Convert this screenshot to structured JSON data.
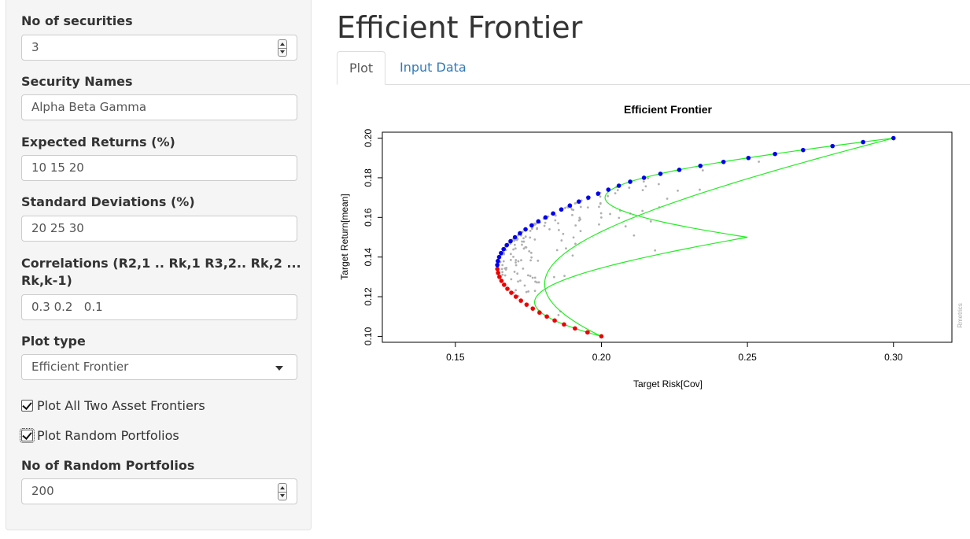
{
  "sidebar": {
    "num_securities": {
      "label": "No of securities",
      "value": "3"
    },
    "security_names": {
      "label": "Security Names",
      "value": "Alpha Beta Gamma"
    },
    "expected_returns": {
      "label": "Expected Returns (%)",
      "value": "10 15 20"
    },
    "std_devs": {
      "label": "Standard Deviations (%)",
      "value": "20 25 30"
    },
    "correlations": {
      "label_line1": "Correlations (R2,1 .. Rk,1 R3,2.. Rk,2 ...",
      "label_line2": "Rk,k-1)",
      "value": "0.3 0.2   0.1"
    },
    "plot_type": {
      "label": "Plot type",
      "value": "Efficient Frontier"
    },
    "plot_two_asset": {
      "label": "Plot All Two Asset Frontiers",
      "checked": true
    },
    "plot_random": {
      "label": "Plot Random Portfolios",
      "checked": true
    },
    "num_random": {
      "label": "No of Random Portfolios",
      "value": "200"
    }
  },
  "main": {
    "title": "Efficient Frontier",
    "tabs": [
      {
        "label": "Plot",
        "active": true
      },
      {
        "label": "Input Data",
        "active": false
      }
    ]
  },
  "colors": {
    "efficient": "#0000ee",
    "inefficient": "#ee0000",
    "two_asset": "#22ee22",
    "random": "#b0b0b0",
    "link": "#337ab7"
  },
  "chart_data": {
    "type": "scatter",
    "title": "Efficient Frontier",
    "xlabel": "Target Risk[Cov]",
    "ylabel": "Target Return[mean]",
    "xlim": [
      0.125,
      0.32
    ],
    "ylim": [
      0.097,
      0.203
    ],
    "xticks": [
      0.15,
      0.2,
      0.25,
      0.3
    ],
    "yticks": [
      0.1,
      0.12,
      0.14,
      0.16,
      0.18,
      0.2
    ],
    "xtick_labels": [
      "0.15",
      "0.20",
      "0.25",
      "0.30"
    ],
    "ytick_labels": [
      "0.10",
      "0.12",
      "0.14",
      "0.16",
      "0.18",
      "0.20"
    ],
    "watermark": "Rmetrics",
    "securities": [
      {
        "mean": 0.1,
        "sd": 0.2
      },
      {
        "mean": 0.15,
        "sd": 0.25
      },
      {
        "mean": 0.2,
        "sd": 0.3
      }
    ],
    "correlations": {
      "r21": 0.3,
      "r31": 0.2,
      "r32": 0.1
    },
    "frontier_points": 51,
    "random_portfolios": 200
  }
}
